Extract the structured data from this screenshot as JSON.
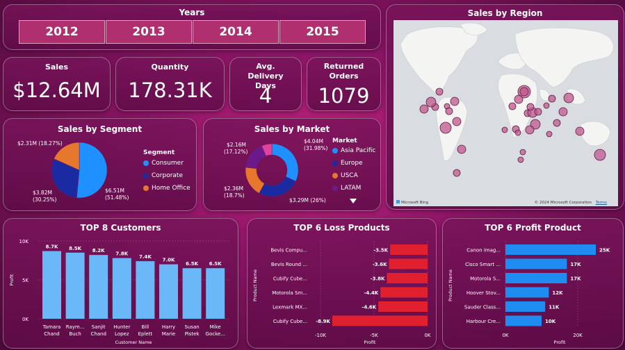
{
  "years": {
    "title": "Years",
    "options": [
      "2012",
      "2013",
      "2014",
      "2015"
    ]
  },
  "kpis": [
    {
      "label": "Sales",
      "value": "$12.64M"
    },
    {
      "label": "Quantity",
      "value": "178.31K"
    },
    {
      "label": "Avg. Delivery Days",
      "value": "4"
    },
    {
      "label": "Returned Orders",
      "value": "1079"
    }
  ],
  "map": {
    "title": "Sales by Region",
    "attribution_left": "Microsoft Bing",
    "attribution_right": "© 2024 Microsoft Corporation",
    "terms": "Terms"
  },
  "segment": {
    "title": "Sales by Segment",
    "legend_title": "Segment",
    "items": [
      {
        "name": "Consumer",
        "value": 6.51,
        "label1": "$6.51M",
        "label2": "(51.48%)",
        "color": "#1e90ff"
      },
      {
        "name": "Corporate",
        "value": 3.82,
        "label1": "$3.82M",
        "label2": "(30.25%)",
        "color": "#1a2aa0"
      },
      {
        "name": "Home Office",
        "value": 2.31,
        "label1": "$2.31M (18.27%)",
        "label2": "",
        "color": "#e8772e"
      }
    ]
  },
  "market": {
    "title": "Sales by Market",
    "legend_title": "Market",
    "items": [
      {
        "name": "Asia Pacific",
        "value": 4.04,
        "label1": "$4.04M",
        "label2": "(31.98%)",
        "color": "#1e90ff"
      },
      {
        "name": "Europe",
        "value": 3.29,
        "label1": "$3.29M (26%)",
        "label2": "",
        "color": "#1a2aa0"
      },
      {
        "name": "USCA",
        "value": 2.36,
        "label1": "$2.36M",
        "label2": "(18.7%)",
        "color": "#e8772e"
      },
      {
        "name": "LATAM",
        "value": 2.16,
        "label1": "$2.16M",
        "label2": "(17.12%)",
        "color": "#6a1a8a"
      },
      {
        "name": "",
        "value": 0.79,
        "label1": "",
        "label2": "",
        "color": "#e0449a"
      }
    ]
  },
  "customers": {
    "title": "TOP 8 Customers",
    "xlabel": "Customer Name",
    "ylabel": "Profit",
    "yticks": [
      "10K",
      "5K",
      "0K"
    ],
    "items": [
      {
        "name1": "Tamara",
        "name2": "Chand",
        "value": 8.7,
        "label": "8.7K"
      },
      {
        "name1": "Raym...",
        "name2": "Buch",
        "value": 8.5,
        "label": "8.5K"
      },
      {
        "name1": "Sanjit",
        "name2": "Chand",
        "value": 8.2,
        "label": "8.2K"
      },
      {
        "name1": "Hunter",
        "name2": "Lopez",
        "value": 7.8,
        "label": "7.8K"
      },
      {
        "name1": "Bill",
        "name2": "Eplett",
        "value": 7.4,
        "label": "7.4K"
      },
      {
        "name1": "Harry",
        "name2": "Marie",
        "value": 7.0,
        "label": "7.0K"
      },
      {
        "name1": "Susan",
        "name2": "Pistek",
        "value": 6.5,
        "label": "6.5K"
      },
      {
        "name1": "Mike",
        "name2": "Gocke...",
        "value": 6.5,
        "label": "6.5K"
      }
    ]
  },
  "loss": {
    "title": "TOP 6 Loss Products",
    "xlabel": "Profit",
    "ylabel": "Product Name",
    "xticks": [
      "-10K",
      "-5K",
      "0K"
    ],
    "items": [
      {
        "name": "Bevis Compu...",
        "value": -3.5,
        "label": "-3.5K"
      },
      {
        "name": "Bevis Round ...",
        "value": -3.6,
        "label": "-3.6K"
      },
      {
        "name": "Cubify Cube...",
        "value": -3.8,
        "label": "-3.8K"
      },
      {
        "name": "Motorola Sm...",
        "value": -4.4,
        "label": "-4.4K"
      },
      {
        "name": "Lexmark MX...",
        "value": -4.6,
        "label": "-4.6K"
      },
      {
        "name": "Cubify Cube...",
        "value": -8.9,
        "label": "-8.9K"
      }
    ]
  },
  "profit": {
    "title": "TOP 6 Profit Product",
    "xlabel": "Profit",
    "ylabel": "Product Name",
    "xticks": [
      "0K",
      "20K"
    ],
    "items": [
      {
        "name": "Canon imag...",
        "value": 25,
        "label": "25K"
      },
      {
        "name": "Cisco Smart ...",
        "value": 17,
        "label": "17K"
      },
      {
        "name": "Motorola S...",
        "value": 17,
        "label": "17K"
      },
      {
        "name": "Hoover Stov...",
        "value": 12,
        "label": "12K"
      },
      {
        "name": "Sauder Class...",
        "value": 11,
        "label": "11K"
      },
      {
        "name": "Harbour Cre...",
        "value": 10,
        "label": "10K"
      }
    ]
  },
  "colors": {
    "bar_customers": "#6ab8f7",
    "bar_loss": "#e0202f",
    "bar_profit": "#1e8cf0",
    "map_bubble": "#c0588e"
  }
}
